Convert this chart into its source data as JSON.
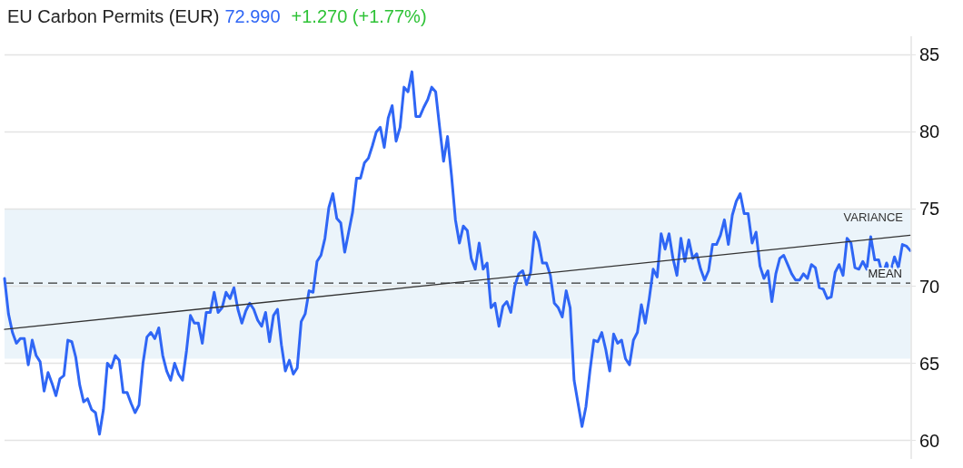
{
  "chart_data": {
    "type": "line",
    "title": "EU Carbon Permits (EUR)",
    "annotations": [
      "72.990",
      "+1.270 (+1.77%)"
    ],
    "categories": [
      null,
      null,
      null,
      null,
      null,
      null,
      null,
      null,
      null,
      null,
      null,
      null,
      null,
      null,
      null,
      null,
      null,
      null,
      null,
      null,
      null,
      null,
      null,
      null,
      null,
      null,
      null,
      null,
      null,
      null,
      null,
      null,
      null,
      null,
      null,
      null,
      null,
      null,
      null,
      null,
      null,
      null,
      null,
      null,
      null,
      null,
      null,
      null,
      null,
      null,
      null,
      null,
      null,
      null,
      null,
      null,
      null,
      null,
      null,
      null,
      null,
      null,
      null,
      null,
      null,
      null,
      null,
      null,
      null,
      null,
      null,
      null,
      null,
      null,
      null,
      null,
      null,
      null,
      null,
      null,
      null,
      null,
      null,
      null,
      null,
      null,
      null,
      null,
      null,
      null,
      null,
      null,
      null,
      null,
      null,
      null,
      null,
      null,
      null,
      null,
      null,
      null,
      null,
      null,
      null,
      null,
      null,
      null,
      null,
      null,
      null,
      null,
      null,
      null,
      null,
      null,
      null,
      null,
      null,
      null,
      null,
      null,
      null,
      null,
      null,
      null,
      null,
      null,
      null,
      null,
      null,
      null,
      null,
      null,
      null,
      null,
      null,
      null,
      null,
      null,
      null,
      null,
      null,
      null,
      null,
      null,
      null,
      null,
      null,
      null,
      null,
      null,
      null,
      null,
      null,
      null,
      null,
      null,
      null,
      null,
      null,
      null,
      null,
      null,
      null,
      null,
      null,
      null,
      null,
      null,
      null,
      null,
      null,
      null,
      null,
      null,
      null,
      null,
      null,
      null,
      null,
      null,
      null,
      null,
      null,
      null,
      null,
      null,
      null,
      null,
      null,
      null,
      null,
      null,
      null,
      null,
      null,
      null,
      null,
      null,
      null,
      null,
      null,
      null,
      null,
      null,
      null,
      null,
      null,
      null,
      null,
      null,
      null,
      null,
      null,
      null,
      null,
      null,
      null,
      null,
      null,
      null,
      null,
      null,
      null,
      null,
      null,
      null,
      null,
      null
    ],
    "series": [
      {
        "color": "#2f66f5",
        "values": [
          70.5,
          68.2,
          67.0,
          66.3,
          66.6,
          66.6,
          64.9,
          66.5,
          65.5,
          65.1,
          63.2,
          64.4,
          63.7,
          62.9,
          64.0,
          64.2,
          66.5,
          66.4,
          65.4,
          63.6,
          62.5,
          62.7,
          62.0,
          61.8,
          60.4,
          62.0,
          65.0,
          64.7,
          65.5,
          65.2,
          63.1,
          63.1,
          62.4,
          61.8,
          62.3,
          65.0,
          66.7,
          67.0,
          66.6,
          67.3,
          65.5,
          64.5,
          63.9,
          65.0,
          64.3,
          63.9,
          65.8,
          68.1,
          67.6,
          67.6,
          66.3,
          68.3,
          68.3,
          69.6,
          68.3,
          68.6,
          69.6,
          69.2,
          69.9,
          68.5,
          67.6,
          68.4,
          68.9,
          68.5,
          67.8,
          67.4,
          68.3,
          66.4,
          68.1,
          68.5,
          66.2,
          64.5,
          65.2,
          64.3,
          64.7,
          67.7,
          68.2,
          69.7,
          69.6,
          71.6,
          72.0,
          73.1,
          75.1,
          76.0,
          74.4,
          74.1,
          72.2,
          73.5,
          74.8,
          77.0,
          77.0,
          78.0,
          78.3,
          79.1,
          80.0,
          80.3,
          79.0,
          80.9,
          81.7,
          79.4,
          80.3,
          82.9,
          82.6,
          83.9,
          81.0,
          81.0,
          81.6,
          82.1,
          82.9,
          82.6,
          80.3,
          78.1,
          79.7,
          77.2,
          74.3,
          72.8,
          73.9,
          73.6,
          71.8,
          71.1,
          72.8,
          71.1,
          71.5,
          68.6,
          68.9,
          67.4,
          68.7,
          69.0,
          68.3,
          70.0,
          70.8,
          71.0,
          70.1,
          70.9,
          73.5,
          72.9,
          71.5,
          71.5,
          70.7,
          68.9,
          68.6,
          68.0,
          69.7,
          68.6,
          63.9,
          62.4,
          60.9,
          62.2,
          64.5,
          66.5,
          66.4,
          67.0,
          65.9,
          64.5,
          66.9,
          66.3,
          66.5,
          65.3,
          64.9,
          66.5,
          67.0,
          68.8,
          67.6,
          69.2,
          71.1,
          70.6,
          73.4,
          72.4,
          73.4,
          71.8,
          70.7,
          73.1,
          71.6,
          73.0,
          71.8,
          72.1,
          71.1,
          70.4,
          71.0,
          72.7,
          72.7,
          73.3,
          74.3,
          72.7,
          74.6,
          75.5,
          76.0,
          74.7,
          74.7,
          72.8,
          73.5,
          71.3,
          70.5,
          71.0,
          69.0,
          70.8,
          71.8,
          72.0,
          71.4,
          70.8,
          70.4,
          70.4,
          70.8,
          70.5,
          71.4,
          71.2,
          69.9,
          69.8,
          69.2,
          69.3,
          70.9,
          71.4,
          70.7,
          73.1,
          72.8,
          71.2,
          71.1,
          71.6,
          71.1,
          73.2,
          71.7,
          71.7,
          70.7,
          71.5,
          70.9,
          71.9,
          71.2,
          72.7,
          72.6,
          72.3
        ]
      },
      {
        "color": "#333333",
        "values": [
          67.2,
          null,
          null,
          null,
          null,
          null,
          null,
          null,
          null,
          null,
          null,
          null,
          null,
          null,
          null,
          null,
          null,
          null,
          null,
          null,
          null,
          null,
          null,
          null,
          null,
          null,
          null,
          null,
          null,
          null,
          null,
          null,
          null,
          null,
          null,
          null,
          null,
          null,
          null,
          null,
          null,
          null,
          null,
          null,
          null,
          null,
          null,
          null,
          null,
          null,
          null,
          null,
          null,
          null,
          null,
          null,
          null,
          null,
          null,
          null,
          null,
          null,
          null,
          null,
          null,
          null,
          null,
          null,
          null,
          null,
          null,
          null,
          null,
          null,
          null,
          null,
          null,
          null,
          null,
          null,
          null,
          null,
          null,
          null,
          null,
          null,
          null,
          null,
          null,
          null,
          null,
          null,
          null,
          null,
          null,
          null,
          null,
          null,
          null,
          null,
          null,
          null,
          null,
          null,
          null,
          null,
          null,
          null,
          null,
          null,
          null,
          null,
          null,
          null,
          null,
          null,
          null,
          null,
          null,
          null,
          null,
          null,
          null,
          null,
          null,
          null,
          null,
          null,
          null,
          null,
          null,
          null,
          null,
          null,
          null,
          null,
          null,
          null,
          null,
          null,
          null,
          null,
          null,
          null,
          null,
          null,
          null,
          null,
          null,
          null,
          null,
          null,
          null,
          null,
          null,
          null,
          null,
          null,
          null,
          null,
          null,
          null,
          null,
          null,
          null,
          null,
          null,
          null,
          null,
          null,
          null,
          null,
          null,
          null,
          null,
          null,
          null,
          null,
          null,
          null,
          null,
          null,
          null,
          null,
          null,
          null,
          null,
          null,
          null,
          null,
          null,
          null,
          null,
          null,
          null,
          null,
          null,
          null,
          null,
          null,
          null,
          null,
          null,
          null,
          null,
          null,
          null,
          null,
          null,
          null,
          null,
          null,
          null,
          null,
          null,
          null,
          null,
          null,
          null,
          null,
          null,
          null,
          null,
          null,
          null,
          null,
          null,
          null,
          null,
          73.3
        ]
      }
    ],
    "ylim": [
      58.8,
      86.2
    ],
    "yticks": [
      60,
      65,
      70,
      75,
      80,
      85
    ],
    "grid": "y",
    "ref_lines": [
      {
        "axis": "y",
        "value": 70.2,
        "label": "MEAN",
        "color": "#333333",
        "line_style": "dashed"
      }
    ],
    "bands": [
      {
        "axis": "y",
        "from": 65.3,
        "to": 75.0,
        "label": "VARIANCE",
        "color": "#ebf4fa"
      }
    ]
  }
}
